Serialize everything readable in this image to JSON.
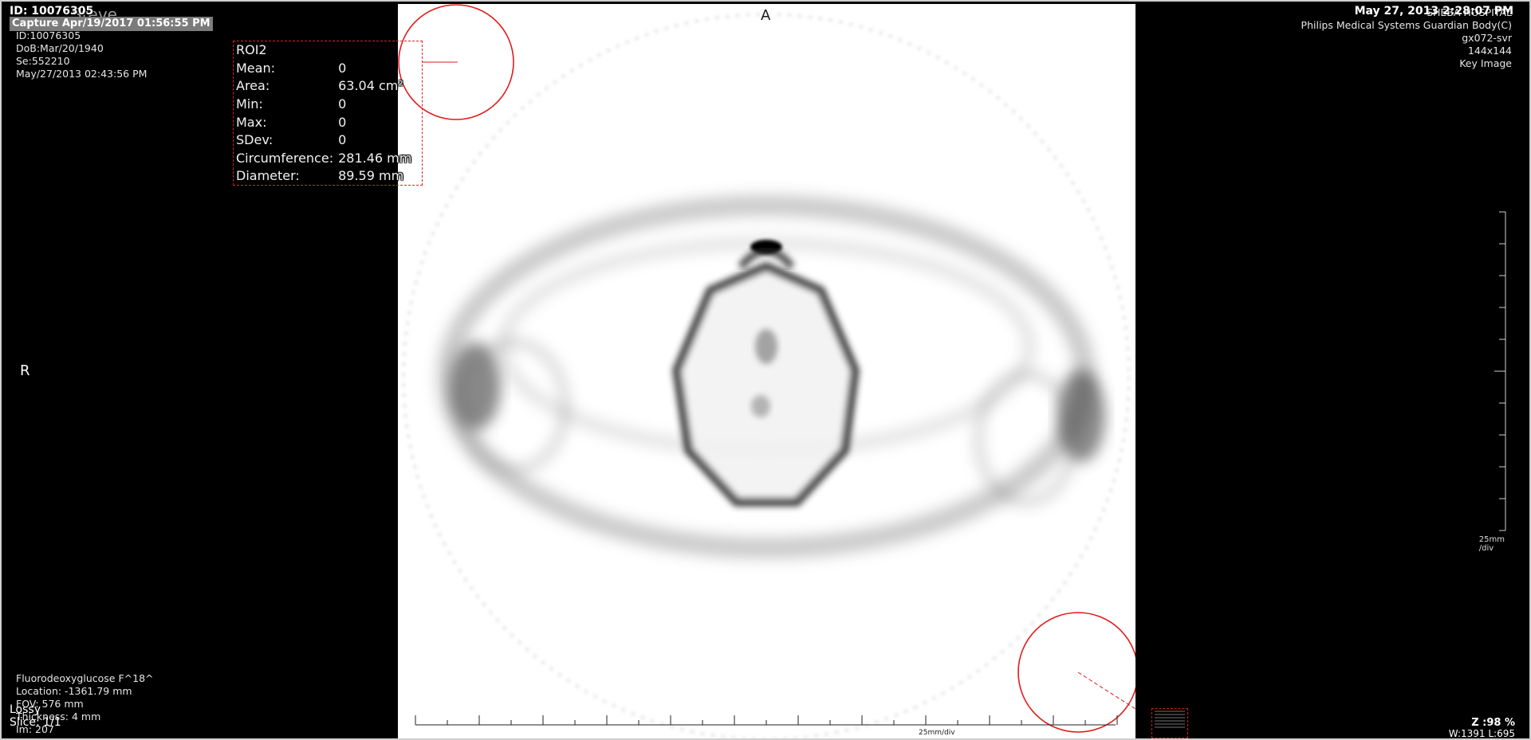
{
  "header": {
    "patient_id_top": "ID: 10076305",
    "patient_name_ghost": "Steve",
    "capture": "Capture Apr/19/2017 01:56:55 PM",
    "timestamp": "May 27, 2013 2:28:07 PM"
  },
  "top_left": {
    "id": "ID:10076305",
    "dob": "DoB:Mar/20/1940",
    "series": "Se:552210",
    "date": "May/27/2013 02:43:56 PM"
  },
  "top_right": {
    "hospital": "SHEBA HOSPITAL",
    "device": "Philips Medical Systems Guardian Body(C)",
    "station": "gx072-svr",
    "matrix": "144x144",
    "key_image": "Key Image"
  },
  "bottom_left": {
    "tracer": "Fluorodeoxyglucose F^18^",
    "location": "Location: -1361.79 mm",
    "fov": "FOV: 576 mm",
    "thickness": "Thickness: 4 mm",
    "image_number": "Im: 207"
  },
  "status": {
    "lossy": "Lossy",
    "slice": "Slice: 1/1",
    "zoom": "Z :98 %",
    "window_level": "W:1391 L:695"
  },
  "orientation": {
    "anterior": "A",
    "right": "R"
  },
  "scales": {
    "right_line1": "25mm",
    "right_line2": "/div",
    "bottom": "25mm/div"
  },
  "roi": {
    "name": "ROI2",
    "rows": [
      {
        "label": "Mean:",
        "value": "0"
      },
      {
        "label": "Area:",
        "value": "63.04 cm²"
      },
      {
        "label": "Min:",
        "value": "0"
      },
      {
        "label": "Max:",
        "value": "0"
      },
      {
        "label": "SDev:",
        "value": "0"
      },
      {
        "label": "Circumference:",
        "value": "281.46 mm"
      },
      {
        "label": "Diameter:",
        "value": "89.59 mm"
      }
    ]
  },
  "colors": {
    "roi_red": "#e11b1b",
    "background": "#000000",
    "image_background": "#ffffff"
  }
}
